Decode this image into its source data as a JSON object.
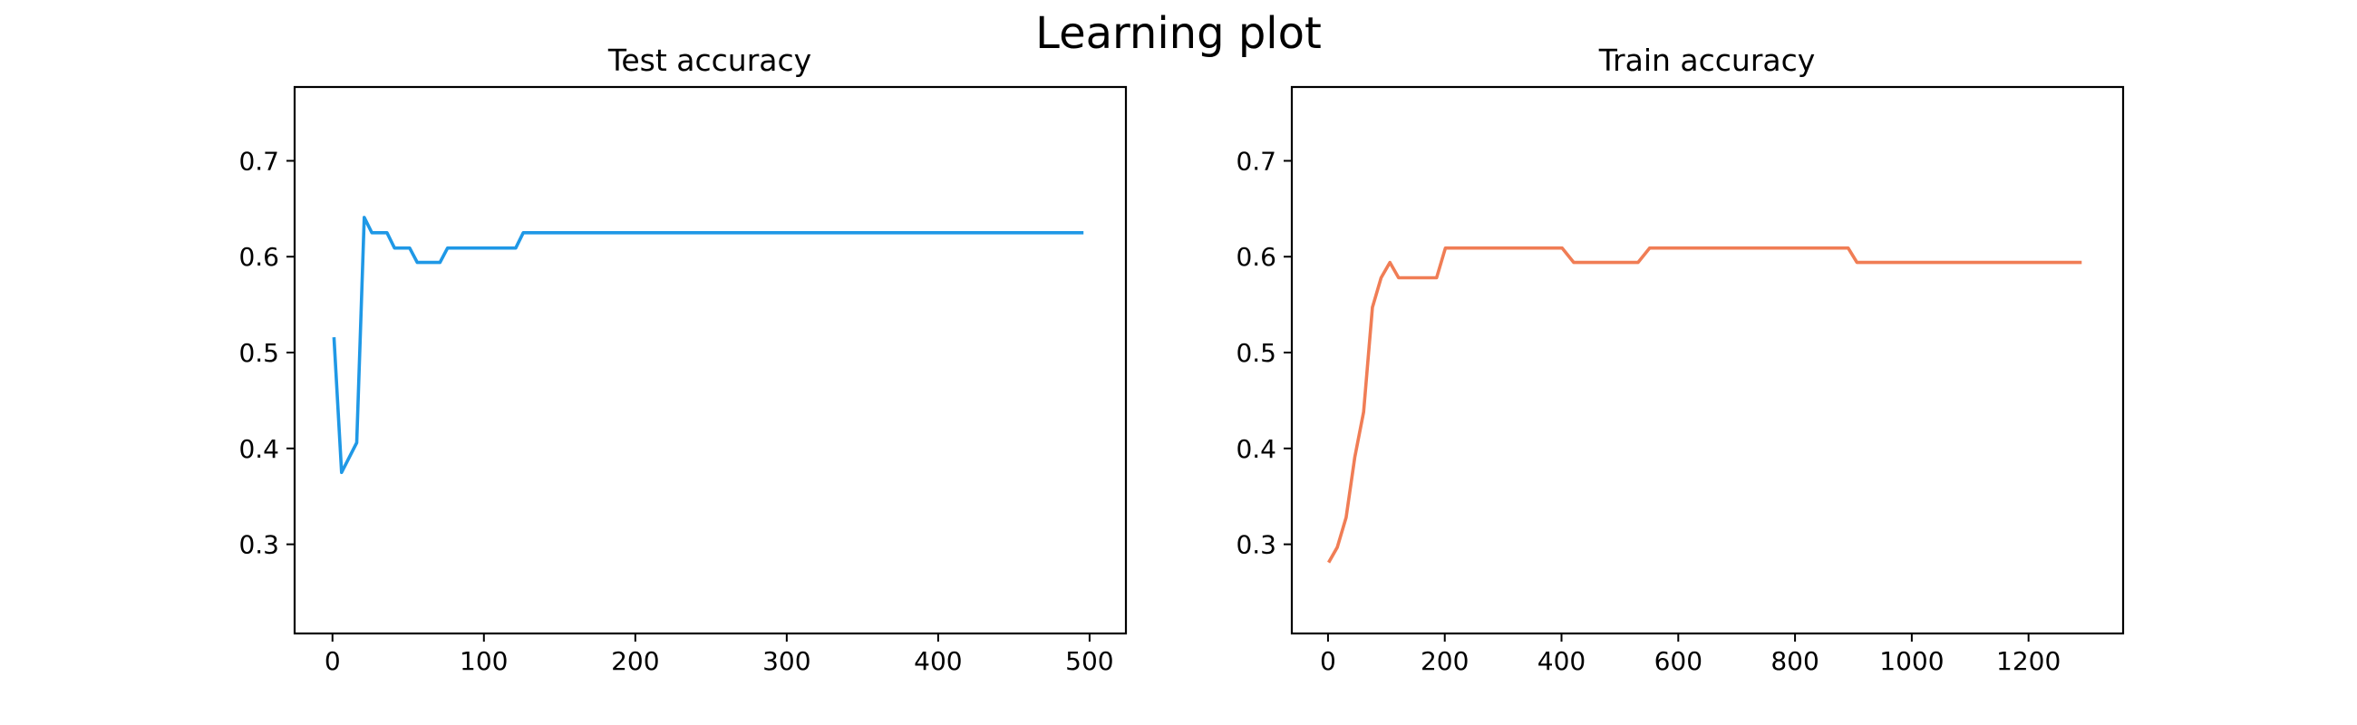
{
  "figure": {
    "title": "Learning plot"
  },
  "chart_data": [
    {
      "type": "line",
      "title": "Test accuracy",
      "xlabel": "",
      "ylabel": "",
      "xlim": [
        -25,
        524
      ],
      "ylim": [
        0.207,
        0.777
      ],
      "xticks": [
        0,
        100,
        200,
        300,
        400,
        500
      ],
      "yticks": [
        0.3,
        0.4,
        0.5,
        0.6,
        0.7
      ],
      "ytick_labels": [
        "0.3",
        "0.4",
        "0.5",
        "0.6",
        "0.7"
      ],
      "grid": false,
      "legend": "none",
      "color": "#1f98e6",
      "series": [
        {
          "x": [
            1,
            6,
            16,
            21,
            26,
            36,
            41,
            51,
            56,
            71,
            76,
            121,
            126,
            496
          ],
          "y": [
            0.516,
            0.375,
            0.406,
            0.641,
            0.625,
            0.625,
            0.609,
            0.609,
            0.594,
            0.594,
            0.609,
            0.609,
            0.625,
            0.625
          ]
        }
      ]
    },
    {
      "type": "line",
      "title": "Train accuracy",
      "xlabel": "",
      "ylabel": "",
      "xlim": [
        -62,
        1362
      ],
      "ylim": [
        0.207,
        0.777
      ],
      "xticks": [
        0,
        200,
        400,
        600,
        800,
        1000,
        1200
      ],
      "yticks": [
        0.3,
        0.4,
        0.5,
        0.6,
        0.7
      ],
      "ytick_labels": [
        "0.3",
        "0.4",
        "0.5",
        "0.6",
        "0.7"
      ],
      "grid": false,
      "legend": "none",
      "color": "#f07d55",
      "series": [
        {
          "x": [
            1,
            16,
            31,
            46,
            61,
            76,
            91,
            106,
            121,
            186,
            201,
            401,
            421,
            531,
            551,
            891,
            906,
            1291
          ],
          "y": [
            0.281,
            0.297,
            0.328,
            0.391,
            0.438,
            0.547,
            0.578,
            0.594,
            0.578,
            0.578,
            0.609,
            0.609,
            0.594,
            0.594,
            0.609,
            0.609,
            0.594,
            0.594
          ]
        }
      ]
    }
  ]
}
